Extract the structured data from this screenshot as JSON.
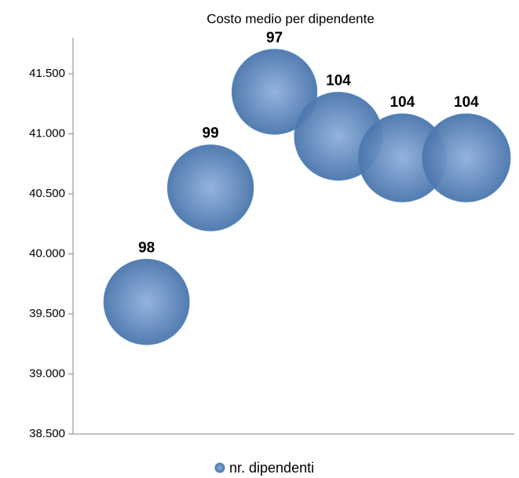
{
  "chart_data": {
    "type": "bubble",
    "title": "Costo medio per  dipendente",
    "series": [
      {
        "name": "nr. dipendenti",
        "color": "#4f81bd",
        "x": [
          1,
          2,
          3,
          4,
          5,
          6
        ],
        "values": [
          39600,
          40550,
          41350,
          40980,
          40800,
          40800
        ],
        "sizes": [
          98,
          99,
          97,
          104,
          104,
          104
        ]
      }
    ],
    "xlim": [
      -0.15,
      6.75
    ],
    "ylim": [
      38500,
      41800
    ],
    "yticks": [
      {
        "value": 38500,
        "label": "38.500"
      },
      {
        "value": 39000,
        "label": "39.000"
      },
      {
        "value": 39500,
        "label": "39.500"
      },
      {
        "value": 40000,
        "label": "40.000"
      },
      {
        "value": 40500,
        "label": "40.500"
      },
      {
        "value": 41000,
        "label": "41.000"
      },
      {
        "value": 41500,
        "label": "41.500"
      }
    ],
    "legend": "bottom"
  }
}
